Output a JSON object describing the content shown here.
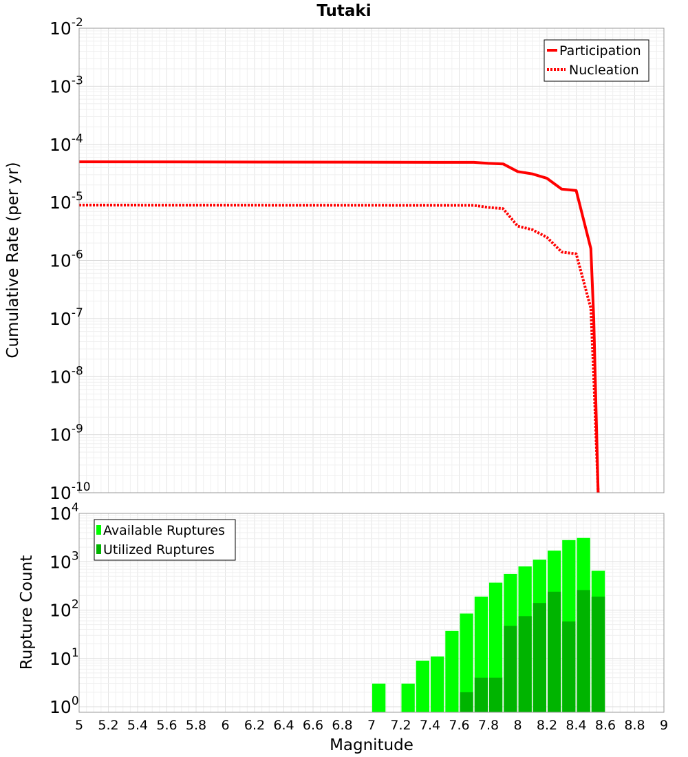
{
  "chart_data": [
    {
      "type": "line",
      "title": "Tutaki",
      "ylabel": "Cumulative Rate (per yr)",
      "xlabel": "Magnitude",
      "yscale": "log",
      "xlim": [
        5,
        9
      ],
      "ylim": [
        1e-10,
        0.01
      ],
      "y_tick_exponents": [
        "-10",
        "-9",
        "-8",
        "-7",
        "-6",
        "-5",
        "-4",
        "-3",
        "-2"
      ],
      "grid": true,
      "legend": "top-right",
      "series": [
        {
          "name": "Participation",
          "color": "#ff0000",
          "style": "solid",
          "x": [
            5.0,
            7.7,
            7.8,
            7.9,
            8.0,
            8.1,
            8.2,
            8.3,
            8.4,
            8.5,
            8.52,
            8.55
          ],
          "y": [
            5e-05,
            4.9e-05,
            4.7e-05,
            4.6e-05,
            3.4e-05,
            3.1e-05,
            2.6e-05,
            1.7e-05,
            1.6e-05,
            1.6e-06,
            1e-07,
            1e-10
          ]
        },
        {
          "name": "Nucleation",
          "color": "#ff0000",
          "style": "dotted",
          "x": [
            5.0,
            7.7,
            7.8,
            7.9,
            8.0,
            8.1,
            8.2,
            8.3,
            8.4,
            8.5,
            8.52,
            8.55
          ],
          "y": [
            9e-06,
            8.9e-06,
            8.2e-06,
            7.8e-06,
            3.9e-06,
            3.4e-06,
            2.5e-06,
            1.4e-06,
            1.3e-06,
            1.5e-07,
            1e-08,
            1e-10
          ]
        }
      ]
    },
    {
      "type": "bar",
      "ylabel": "Rupture Count",
      "xlabel": "Magnitude",
      "yscale": "log",
      "xlim": [
        5,
        9
      ],
      "ylim": [
        0.77,
        10000
      ],
      "y_tick_exponents": [
        "0",
        "1",
        "2",
        "3",
        "4"
      ],
      "x_ticks": [
        "5",
        "5.2",
        "5.4",
        "5.6",
        "5.8",
        "6",
        "6.2",
        "6.4",
        "6.6",
        "6.8",
        "7",
        "7.2",
        "7.4",
        "7.6",
        "7.8",
        "8",
        "8.2",
        "8.4",
        "8.6",
        "8.8",
        "9"
      ],
      "grid": true,
      "legend": "top-left",
      "bin_width": 0.1,
      "series": [
        {
          "name": "Available Ruptures",
          "color": "#00ff00",
          "x": [
            7.05,
            7.25,
            7.35,
            7.45,
            7.55,
            7.65,
            7.75,
            7.85,
            7.95,
            8.05,
            8.15,
            8.25,
            8.35,
            8.45,
            8.55
          ],
          "values": [
            3,
            3,
            9,
            11,
            37,
            85,
            190,
            370,
            560,
            800,
            1100,
            1700,
            2800,
            3100,
            650
          ]
        },
        {
          "name": "Utilized Ruptures",
          "color": "#00b400",
          "x": [
            7.65,
            7.75,
            7.85,
            7.95,
            8.05,
            8.15,
            8.25,
            8.35,
            8.45,
            8.55
          ],
          "values": [
            2,
            4,
            4,
            47,
            75,
            140,
            240,
            58,
            260,
            190
          ]
        }
      ]
    }
  ]
}
